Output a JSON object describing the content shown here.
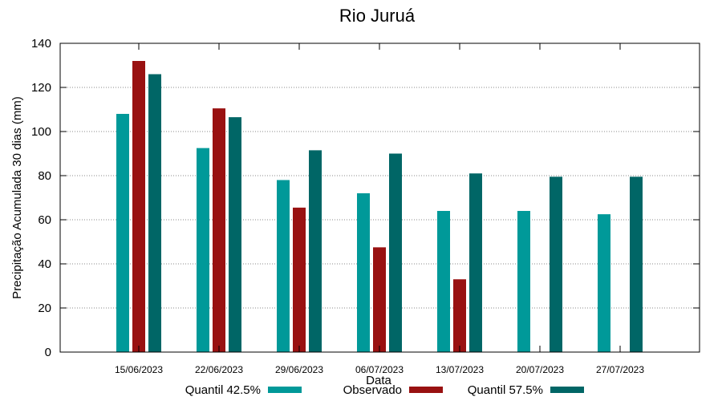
{
  "chart_data": {
    "type": "bar",
    "title": "Rio Juruá",
    "xlabel": "Data",
    "ylabel": "Precipitação Acumulada 30 dias (mm)",
    "ylim": [
      0,
      140
    ],
    "yticks": [
      0,
      20,
      40,
      60,
      80,
      100,
      120,
      140
    ],
    "grid": true,
    "legend_position": "bottom",
    "categories": [
      "15/06/2023",
      "22/06/2023",
      "29/06/2023",
      "06/07/2023",
      "13/07/2023",
      "20/07/2023",
      "27/07/2023"
    ],
    "series": [
      {
        "name": "Quantil 42.5%",
        "color": "#009999",
        "values": [
          108,
          92.5,
          78,
          72,
          64,
          64,
          62.5
        ]
      },
      {
        "name": "Observado",
        "color": "#991111",
        "values": [
          132,
          110.5,
          65.5,
          47.5,
          33,
          null,
          null
        ]
      },
      {
        "name": "Quantil 57.5%",
        "color": "#006666",
        "values": [
          126,
          106.5,
          91.5,
          90,
          81,
          79.5,
          79.5
        ]
      }
    ]
  }
}
